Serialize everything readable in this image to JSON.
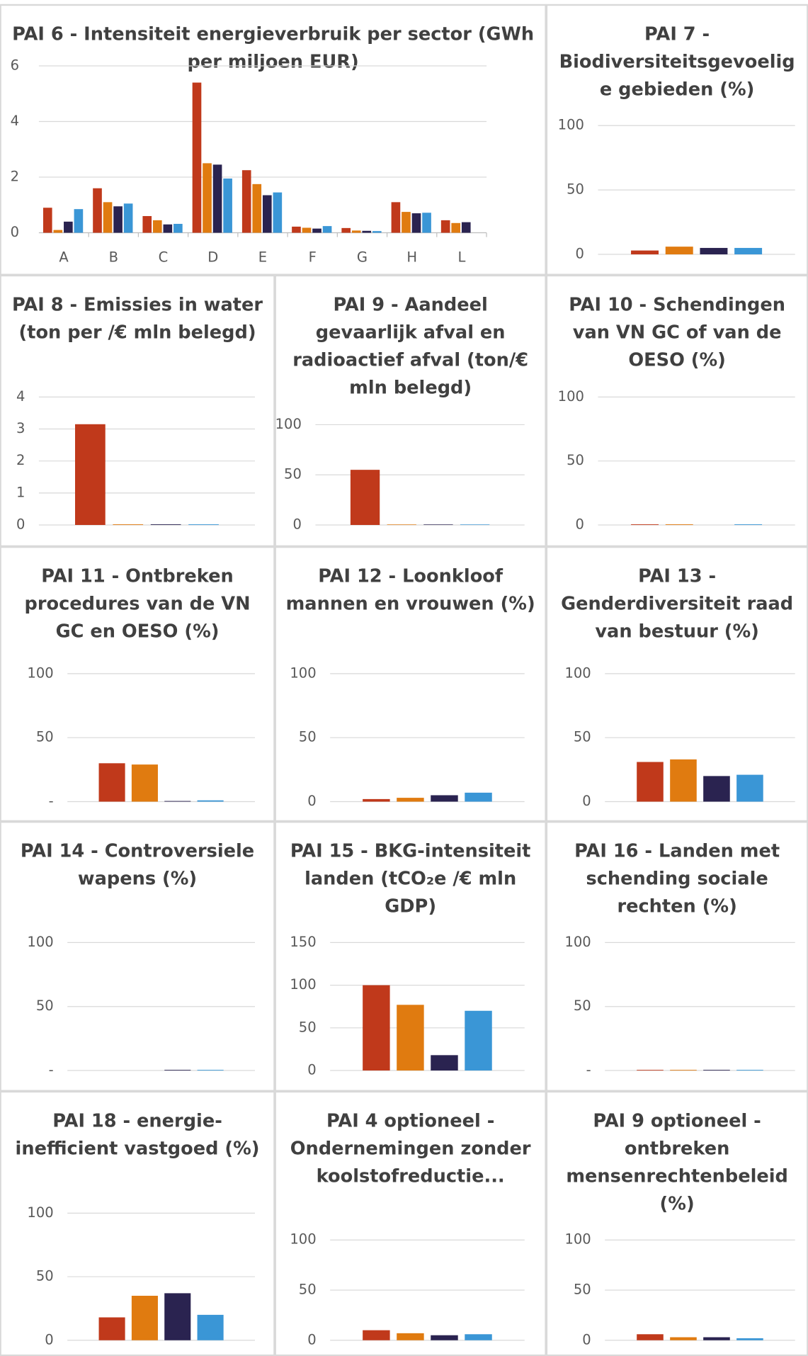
{
  "chart_data": [
    {
      "type": "bar",
      "title": "PAI 6 - Intensiteit energieverbruik per sector (GWh per miljoen EUR)",
      "categories": [
        "A",
        "B",
        "C",
        "D",
        "E",
        "F",
        "G",
        "H",
        "L"
      ],
      "series": [
        {
          "color": "#c0391b",
          "values": [
            0.9,
            1.6,
            0.6,
            5.4,
            2.25,
            0.22,
            0.17,
            1.1,
            0.45
          ]
        },
        {
          "color": "#e07b10",
          "values": [
            0.1,
            1.1,
            0.45,
            2.5,
            1.75,
            0.18,
            0.08,
            0.75,
            0.35
          ]
        },
        {
          "color": "#2a2350",
          "values": [
            0.4,
            0.95,
            0.3,
            2.45,
            1.35,
            0.15,
            0.07,
            0.7,
            0.38
          ]
        },
        {
          "color": "#3a96d6",
          "values": [
            0.85,
            1.05,
            0.32,
            1.95,
            1.45,
            0.24,
            0.06,
            0.72,
            null
          ]
        }
      ],
      "ylim": [
        0,
        6
      ],
      "yticks": [
        0,
        2,
        4,
        6
      ],
      "grid": true
    },
    {
      "type": "bar",
      "title": "PAI 7 - Biodiversiteitsgevoelige gebieden (%)",
      "categories": [
        null,
        null,
        null,
        null
      ],
      "values": [
        3,
        6,
        5,
        5
      ],
      "colors": [
        "#c0391b",
        "#e07b10",
        "#2a2350",
        "#3a96d6"
      ],
      "ylim": [
        0,
        100
      ],
      "yticks": [
        0,
        50,
        100
      ],
      "grid": true
    },
    {
      "type": "bar",
      "title": "PAI 8 - Emissies in water (ton per /€ mln belegd)",
      "categories": [
        null,
        null,
        null,
        null
      ],
      "values": [
        3.15,
        0.02,
        0.02,
        0.02
      ],
      "colors": [
        "#c0391b",
        "#e07b10",
        "#2a2350",
        "#3a96d6"
      ],
      "ylim": [
        0,
        4
      ],
      "yticks": [
        0,
        1,
        2,
        3,
        4
      ],
      "grid": true
    },
    {
      "type": "bar",
      "title": "PAI 9 - Aandeel gevaarlijk afval en radioactief afval (ton/€ mln belegd)",
      "categories": [
        null,
        null,
        null,
        null
      ],
      "values": [
        55,
        0.5,
        0.5,
        0.5
      ],
      "colors": [
        "#c0391b",
        "#e07b10",
        "#2a2350",
        "#3a96d6"
      ],
      "ylim": [
        0,
        100
      ],
      "yticks": [
        0,
        50,
        100
      ],
      "grid": true
    },
    {
      "type": "bar",
      "title": "PAI 10 - Schendingen van VN GC of van de OESO (%)",
      "categories": [
        null,
        null,
        null,
        null
      ],
      "values": [
        0.5,
        0.5,
        0,
        0.5
      ],
      "colors": [
        "#c0391b",
        "#e07b10",
        "#2a2350",
        "#3a96d6"
      ],
      "ylim": [
        0,
        100
      ],
      "yticks": [
        0,
        50,
        100
      ],
      "grid": true
    },
    {
      "type": "bar",
      "title": "PAI 11 - Ontbreken procedures van de VN GC en OESO (%)",
      "categories": [
        null,
        null,
        null,
        null
      ],
      "values": [
        30,
        29,
        0.5,
        1
      ],
      "colors": [
        "#c0391b",
        "#e07b10",
        "#2a2350",
        "#3a96d6"
      ],
      "ylim": [
        0,
        100
      ],
      "yticks": [
        {
          "value": 0,
          "label": "-"
        },
        50,
        100
      ],
      "grid": true
    },
    {
      "type": "bar",
      "title": "PAI 12 - Loonkloof mannen en vrouwen (%)",
      "categories": [
        null,
        null,
        null,
        null
      ],
      "values": [
        2,
        3,
        5,
        7
      ],
      "colors": [
        "#c0391b",
        "#e07b10",
        "#2a2350",
        "#3a96d6"
      ],
      "ylim": [
        0,
        100
      ],
      "yticks": [
        0,
        50,
        100
      ],
      "grid": true
    },
    {
      "type": "bar",
      "title": "PAI 13 - Genderdiversiteit raad van bestuur (%)",
      "categories": [
        null,
        null,
        null,
        null
      ],
      "values": [
        31,
        33,
        20,
        21
      ],
      "colors": [
        "#c0391b",
        "#e07b10",
        "#2a2350",
        "#3a96d6"
      ],
      "ylim": [
        0,
        100
      ],
      "yticks": [
        0,
        50,
        100
      ],
      "grid": true
    },
    {
      "type": "bar",
      "title": "PAI 14 - Controversiele wapens (%)",
      "categories": [
        null,
        null,
        null,
        null
      ],
      "values": [
        0,
        0,
        0.5,
        0.5
      ],
      "colors": [
        "#c0391b",
        "#e07b10",
        "#2a2350",
        "#3a96d6"
      ],
      "ylim": [
        0,
        100
      ],
      "yticks": [
        {
          "value": 0,
          "label": "-"
        },
        50,
        100
      ],
      "grid": true
    },
    {
      "type": "bar",
      "title": "PAI 15 - BKG-intensiteit landen (tCO₂e /€ mln GDP)",
      "categories": [
        null,
        null,
        null,
        null
      ],
      "values": [
        100,
        77,
        18,
        70
      ],
      "colors": [
        "#c0391b",
        "#e07b10",
        "#2a2350",
        "#3a96d6"
      ],
      "ylim": [
        0,
        150
      ],
      "yticks": [
        0,
        50,
        100,
        150
      ],
      "grid": true
    },
    {
      "type": "bar",
      "title": "PAI 16 - Landen met schending sociale rechten (%)",
      "categories": [
        null,
        null,
        null,
        null
      ],
      "values": [
        0.5,
        0.5,
        0.5,
        0.5
      ],
      "colors": [
        "#c0391b",
        "#e07b10",
        "#2a2350",
        "#3a96d6"
      ],
      "ylim": [
        0,
        100
      ],
      "yticks": [
        {
          "value": 0,
          "label": "-"
        },
        50,
        100
      ],
      "grid": true
    },
    {
      "type": "bar",
      "title": "PAI 18 - energie-inefficient vastgoed (%)",
      "categories": [
        null,
        null,
        null,
        null
      ],
      "values": [
        18,
        35,
        37,
        20
      ],
      "colors": [
        "#c0391b",
        "#e07b10",
        "#2a2350",
        "#3a96d6"
      ],
      "ylim": [
        0,
        100
      ],
      "yticks": [
        0,
        50,
        100
      ],
      "grid": true
    },
    {
      "type": "bar",
      "title": "PAI 4 optioneel - Ondernemingen zonder koolstofreductie...",
      "categories": [
        null,
        null,
        null,
        null
      ],
      "values": [
        10,
        7,
        5,
        6
      ],
      "colors": [
        "#c0391b",
        "#e07b10",
        "#2a2350",
        "#3a96d6"
      ],
      "ylim": [
        0,
        100
      ],
      "yticks": [
        0,
        50,
        100
      ],
      "grid": true
    },
    {
      "type": "bar",
      "title": "PAI 9 optioneel - ontbreken mensenrechtenbeleid (%)",
      "categories": [
        null,
        null,
        null,
        null
      ],
      "values": [
        6,
        3,
        3,
        2
      ],
      "colors": [
        "#c0391b",
        "#e07b10",
        "#2a2350",
        "#3a96d6"
      ],
      "ylim": [
        0,
        100
      ],
      "yticks": [
        0,
        50,
        100
      ],
      "grid": true
    }
  ]
}
